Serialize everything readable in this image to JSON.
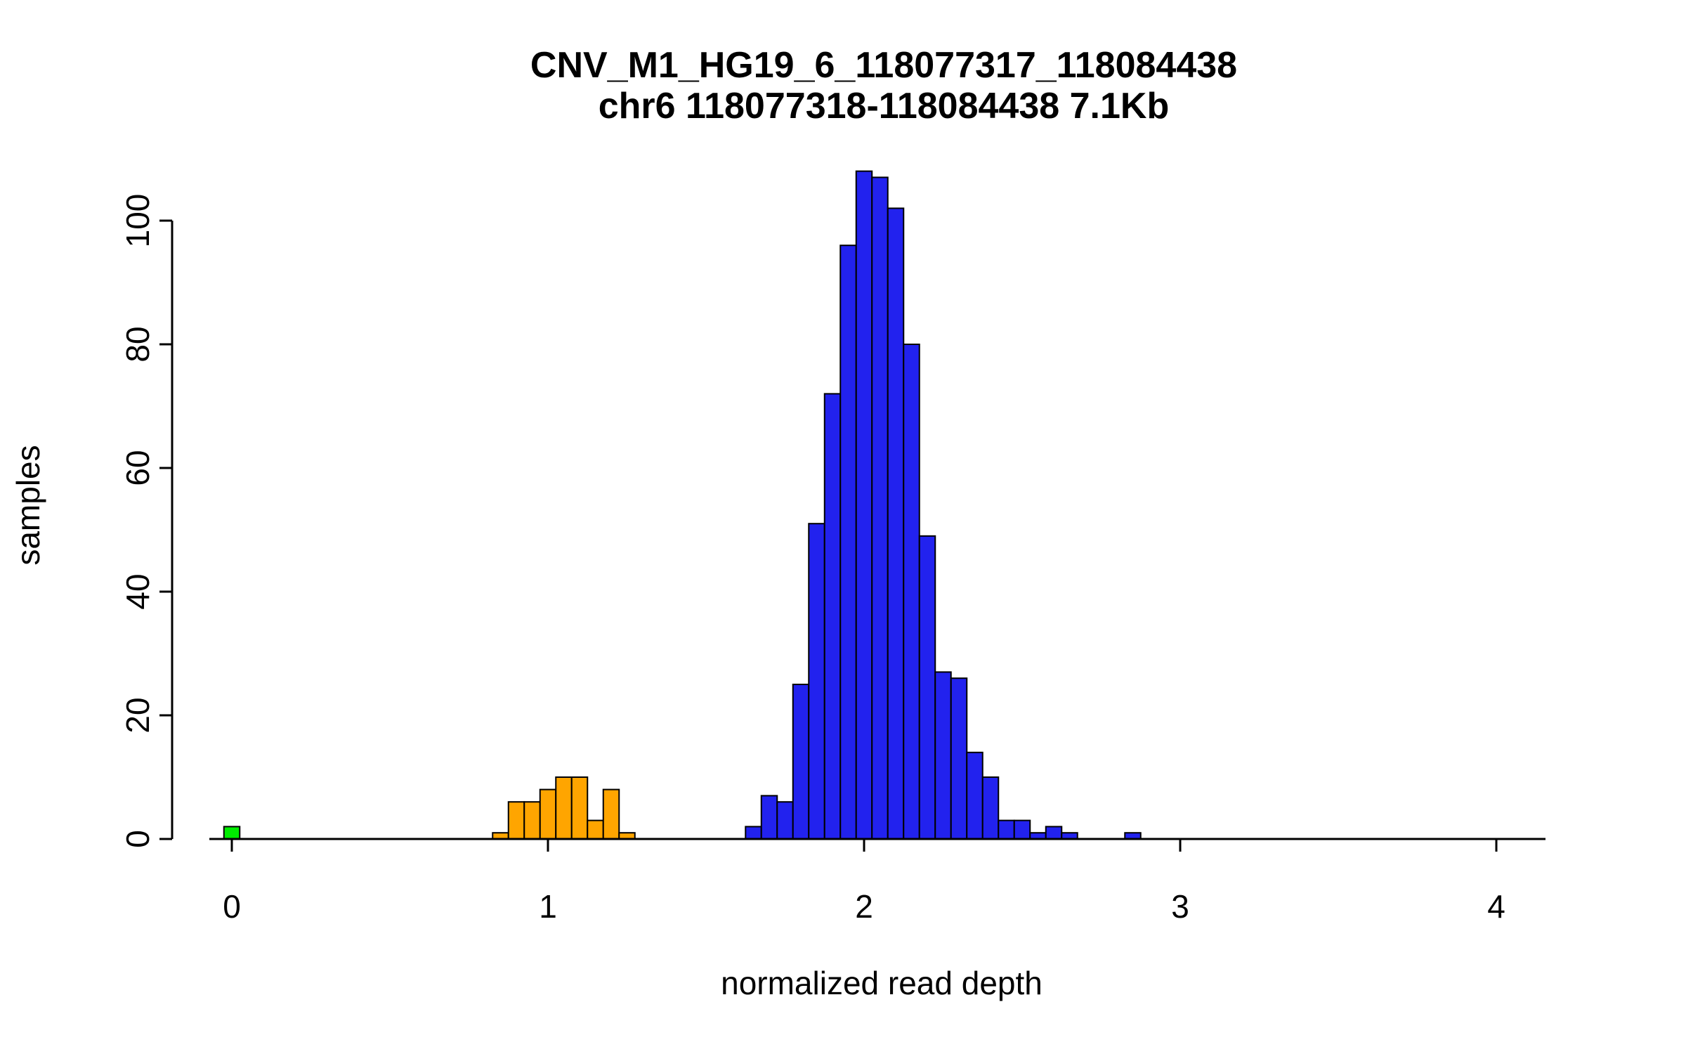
{
  "chart_data": {
    "type": "bar",
    "title": "CNV_M1_HG19_6_118077317_118084438",
    "subtitle": "chr6 118077318-118084438 7.1Kb",
    "xlabel": "normalized read depth",
    "ylabel": "samples",
    "x_ticks": [
      0,
      1,
      2,
      3,
      4
    ],
    "y_ticks": [
      0,
      20,
      40,
      60,
      80,
      100
    ],
    "xlim": [
      -0.15,
      4.2
    ],
    "ylim": [
      0,
      110
    ],
    "grid": false,
    "legend": false,
    "bin_width": 0.05,
    "groups": [
      {
        "name": "green",
        "color": "#00ee00",
        "bins": [
          {
            "x": -0.025,
            "count": 2
          }
        ]
      },
      {
        "name": "orange",
        "color": "#ffa500",
        "bins": [
          {
            "x": 0.825,
            "count": 1
          },
          {
            "x": 0.875,
            "count": 6
          },
          {
            "x": 0.925,
            "count": 6
          },
          {
            "x": 0.975,
            "count": 8
          },
          {
            "x": 1.025,
            "count": 10
          },
          {
            "x": 1.075,
            "count": 10
          },
          {
            "x": 1.125,
            "count": 3
          },
          {
            "x": 1.175,
            "count": 8
          },
          {
            "x": 1.225,
            "count": 1
          }
        ]
      },
      {
        "name": "blue",
        "color": "#2222ee",
        "bins": [
          {
            "x": 1.625,
            "count": 2
          },
          {
            "x": 1.675,
            "count": 7
          },
          {
            "x": 1.725,
            "count": 6
          },
          {
            "x": 1.775,
            "count": 25
          },
          {
            "x": 1.825,
            "count": 51
          },
          {
            "x": 1.875,
            "count": 72
          },
          {
            "x": 1.925,
            "count": 96
          },
          {
            "x": 1.975,
            "count": 108
          },
          {
            "x": 2.025,
            "count": 107
          },
          {
            "x": 2.075,
            "count": 102
          },
          {
            "x": 2.125,
            "count": 80
          },
          {
            "x": 2.175,
            "count": 49
          },
          {
            "x": 2.225,
            "count": 27
          },
          {
            "x": 2.275,
            "count": 26
          },
          {
            "x": 2.325,
            "count": 14
          },
          {
            "x": 2.375,
            "count": 10
          },
          {
            "x": 2.425,
            "count": 3
          },
          {
            "x": 2.475,
            "count": 3
          },
          {
            "x": 2.525,
            "count": 1
          },
          {
            "x": 2.575,
            "count": 2
          },
          {
            "x": 2.625,
            "count": 1
          },
          {
            "x": 2.825,
            "count": 1
          }
        ]
      }
    ]
  }
}
